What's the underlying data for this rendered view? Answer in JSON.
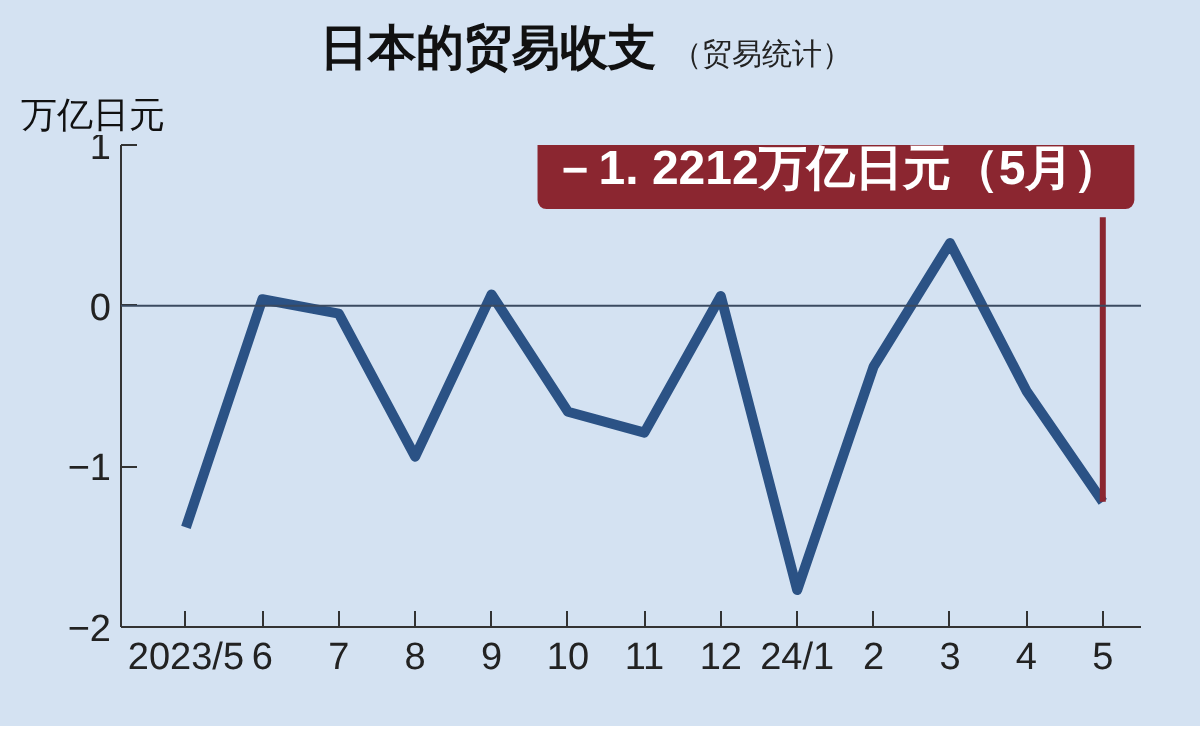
{
  "chart_data": {
    "type": "line",
    "title": "日本的贸易收支",
    "subtitle": "（贸易统计）",
    "ylabel": "万亿日元",
    "categories": [
      "2023/5",
      "6",
      "7",
      "8",
      "9",
      "10",
      "11",
      "12",
      "24/1",
      "2",
      "3",
      "4",
      "5"
    ],
    "series": [
      {
        "color": "#2b5285",
        "values": [
          -1.38,
          0.04,
          -0.05,
          -0.94,
          0.07,
          -0.66,
          -0.79,
          0.06,
          -1.77,
          -0.38,
          0.39,
          -0.53,
          -1.2212
        ]
      }
    ],
    "ylim": [
      -2,
      1
    ],
    "yticks": [
      -2,
      -1,
      0,
      1
    ],
    "ref_lines": [
      {
        "axis": "y",
        "value": 0,
        "color": "#3a4a60"
      }
    ],
    "annotations": [
      {
        "text": "－1. 2212万亿日元（5月）",
        "x": "5",
        "y": -1.2212
      }
    ],
    "grid": false,
    "marker": "none",
    "line_style": "solid"
  }
}
